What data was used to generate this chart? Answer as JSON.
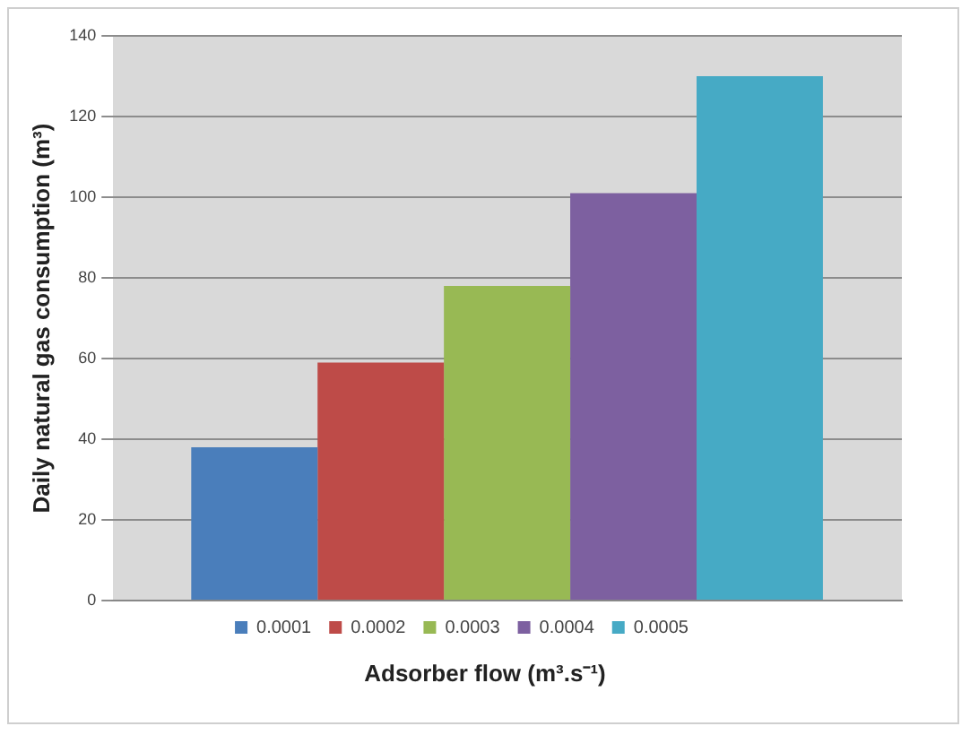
{
  "chart_data": {
    "type": "bar",
    "xlabel": "Adsorber flow (m³.s⁻¹)",
    "ylabel": "Daily natural gas consumption (m³)",
    "categories": [
      null
    ],
    "series": [
      {
        "name": "0.0001",
        "color": "#4a7ebb",
        "values": [
          38
        ]
      },
      {
        "name": "0.0002",
        "color": "#be4b48",
        "values": [
          59
        ]
      },
      {
        "name": "0.0003",
        "color": "#98b954",
        "values": [
          78
        ]
      },
      {
        "name": "0.0004",
        "color": "#7d60a0",
        "values": [
          101
        ]
      },
      {
        "name": "0.0005",
        "color": "#46aac5",
        "values": [
          130
        ]
      }
    ],
    "ylim": [
      0,
      140
    ],
    "yticks": [
      0,
      20,
      40,
      60,
      80,
      100,
      120,
      140
    ],
    "grid": "y",
    "legend": "bottom"
  }
}
